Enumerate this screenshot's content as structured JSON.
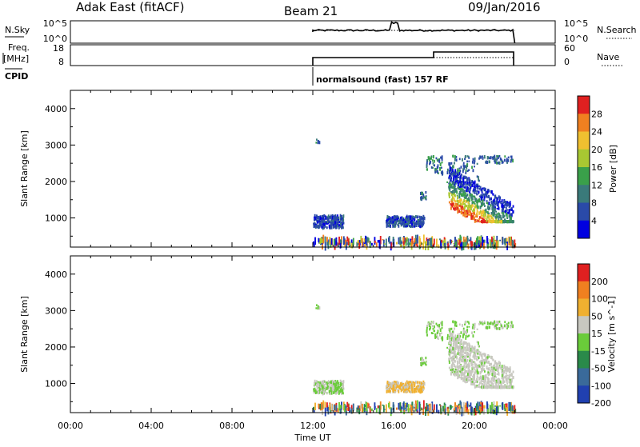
{
  "header": {
    "station": "Adak East (fitACF)",
    "beam": "Beam 21",
    "date": "09/Jan/2016"
  },
  "top_panel": {
    "left_label": "N.Sky",
    "left_ticks": [
      "10^5",
      "10^0"
    ],
    "right_ticks": [
      "10^5",
      "10^0"
    ],
    "right_label": "N.Search"
  },
  "freq_panel": {
    "left_label_1": "Freq.",
    "left_label_2": "[MHz]",
    "left_ticks": [
      "18",
      "8"
    ],
    "right_ticks": [
      "60",
      "0"
    ],
    "right_label": "Nave"
  },
  "cpid": {
    "label": "CPID",
    "program": "normalsound (fast) 157 RF"
  },
  "chart_data": [
    {
      "type": "heatmap",
      "name": "power",
      "ylabel": "Slant Range [km]",
      "y_ticks": [
        "4000",
        "3000",
        "2000",
        "1000"
      ],
      "ylim": [
        200,
        4500
      ],
      "colorbar_label": "Power [dB]",
      "colorbar_ticks": [
        "28",
        "24",
        "20",
        "16",
        "12",
        "8",
        "4"
      ],
      "colors": [
        "#0000e0",
        "#2a4aa8",
        "#3a7a7a",
        "#3aa04a",
        "#a8c832",
        "#f0c030",
        "#f08020",
        "#e02020"
      ]
    },
    {
      "type": "heatmap",
      "name": "velocity",
      "ylabel": "Slant Range [km]",
      "y_ticks": [
        "4000",
        "3000",
        "2000",
        "1000"
      ],
      "ylim": [
        200,
        4500
      ],
      "colorbar_label": "Velocity [m s^-1]",
      "colorbar_ticks": [
        "200",
        "100",
        "50",
        "15",
        "-15",
        "-50",
        "-100",
        "-200"
      ],
      "colors": [
        "#2040b0",
        "#3a6a9a",
        "#2a8a4a",
        "#6acc3a",
        "#c8c8c0",
        "#f0b030",
        "#f08020",
        "#e02020"
      ]
    }
  ],
  "x_axis": {
    "ticks": [
      "00:00",
      "04:00",
      "08:00",
      "12:00",
      "16:00",
      "20:00",
      "00:00"
    ],
    "label": "Time UT"
  }
}
